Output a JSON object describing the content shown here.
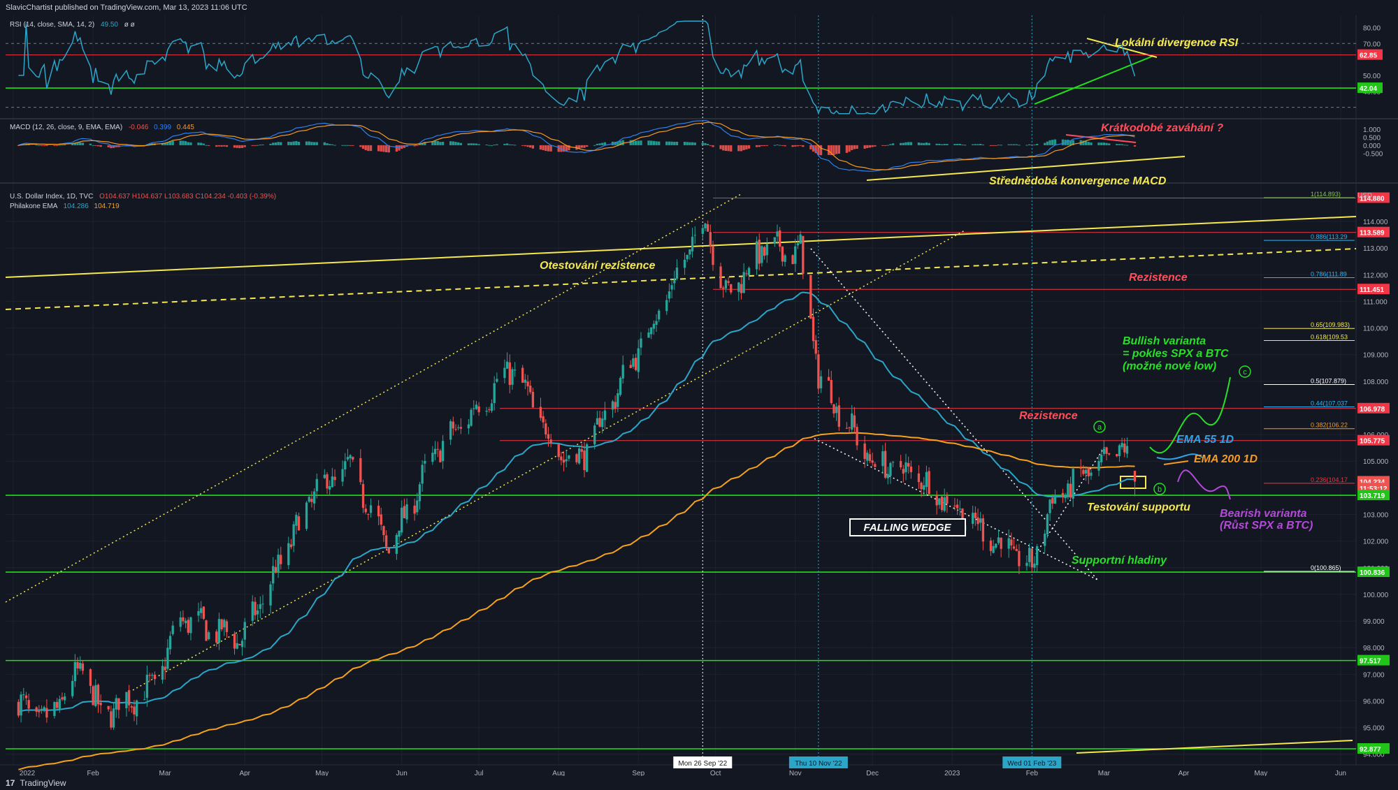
{
  "header": {
    "published_by": "SlavicChartist published on TradingView.com, Mar 13, 2023 11:06 UTC"
  },
  "footer": {
    "brand": "TradingView",
    "logo_glyph": "17"
  },
  "colors": {
    "background": "#131722",
    "up": "#26a69a",
    "down": "#ef5350",
    "ema55": "#2ba6c9",
    "ema200": "#f7a21b",
    "support": "#22e01a",
    "resistance": "#f23645",
    "annotation_yellow": "#f5e94f",
    "annotation_red": "#ff4d5a",
    "annotation_green": "#27e027",
    "annotation_purple": "#b44ad8",
    "annotation_blue": "#2fa3e6",
    "annotation_orange": "#f59a23"
  },
  "panels": {
    "rsi": {
      "legend_name": "RSI (14, close, SMA, 14, 2)",
      "legend_value": "49.50",
      "legend_extra": "ø ø",
      "ticks": [
        "80.00",
        "70.00",
        "50.00",
        "40.00"
      ],
      "badge_upper": "62.85",
      "badge_lower": "42.04"
    },
    "macd": {
      "legend_name": "MACD (12, 26, close, 9, EMA, EMA)",
      "legend_values": [
        "-0.046",
        "0.399",
        "0.445"
      ],
      "ticks": [
        "1.000",
        "0.500",
        "0.000",
        "-0.500"
      ]
    },
    "price": {
      "legend_symbol": "U.S. Dollar Index, 1D, TVC",
      "legend_ohlc": "O104.637 H104.637 L103.683 C104.234 -0.403 (-0.39%)",
      "legend_ema": "Philakone EMA",
      "legend_ema_values": [
        "104.286",
        "104.719"
      ],
      "currency": "USD",
      "ticks": [
        "114.000",
        "113.000",
        "112.000",
        "111.000",
        "110.000",
        "109.000",
        "108.000",
        "107.000",
        "106.000",
        "105.000",
        "103.000",
        "102.000",
        "101.000",
        "100.000",
        "99.000",
        "98.000",
        "97.000",
        "96.000",
        "95.000",
        "94.000"
      ],
      "badges": [
        {
          "label": "114.880",
          "price": 114.88,
          "color": "#f23645"
        },
        {
          "label": "113.589",
          "price": 113.589,
          "color": "#f23645"
        },
        {
          "label": "111.451",
          "price": 111.451,
          "color": "#f23645"
        },
        {
          "label": "106.978",
          "price": 106.978,
          "color": "#f23645"
        },
        {
          "label": "105.775",
          "price": 105.775,
          "color": "#f23645"
        },
        {
          "label": "104.234",
          "price": 104.234,
          "color": "#ef5350"
        },
        {
          "label": "11:53:12",
          "price": 103.98,
          "color": "#ef5350"
        },
        {
          "label": "103.719",
          "price": 103.719,
          "color": "#22c41a"
        },
        {
          "label": "100.836",
          "price": 100.836,
          "color": "#22c41a"
        },
        {
          "label": "97.517",
          "price": 97.517,
          "color": "#22c41a"
        },
        {
          "label": "92.877",
          "price": 92.877,
          "color": "#22c41a"
        }
      ],
      "fib_levels": [
        {
          "label": "1(114.893)",
          "price": 114.893,
          "color": "#8bc34a"
        },
        {
          "label": "0.886(113.29",
          "price": 113.29,
          "color": "#29b6f6"
        },
        {
          "label": "0.786(111.89",
          "price": 111.89,
          "color": "#29b6f6"
        },
        {
          "label": "0.65(109.983)",
          "price": 109.983,
          "color": "#f5e94f"
        },
        {
          "label": "0.618(109.53",
          "price": 109.53,
          "color": "#f5e94f"
        },
        {
          "label": "0.5(107.879)",
          "price": 107.879,
          "color": "#ffffff"
        },
        {
          "label": "0.44(107.037",
          "price": 107.037,
          "color": "#29b6f6"
        },
        {
          "label": "0.382(106.22",
          "price": 106.22,
          "color": "#f59a23"
        },
        {
          "label": "0.236(104.17",
          "price": 104.17,
          "color": "#f23645"
        },
        {
          "label": "0(100.865)",
          "price": 100.865,
          "color": "#ffffff"
        }
      ]
    }
  },
  "time_axis": {
    "labels": [
      "2022",
      "Feb",
      "Mar",
      "Apr",
      "May",
      "Jun",
      "Jul",
      "Aug",
      "Sep",
      "Oct",
      "Nov",
      "Dec",
      "2023",
      "Feb",
      "Mar",
      "Apr",
      "May",
      "Jun"
    ],
    "highlights": [
      "Mon 26 Sep '22",
      "Thu 10 Nov '22",
      "Wed 01 Feb '23"
    ]
  },
  "annotations": {
    "rsi_divergence": "Lokální divergence RSI",
    "macd_hesitation": "Krátkodobé zaváhání ?",
    "macd_convergence": "Střednědobá konvergence MACD",
    "resistance_test": "Otestování rezistence",
    "resistance_1": "Rezistence",
    "resistance_2": "Rezistence",
    "bullish_1": "Bullish varianta",
    "bullish_2": "= pokles SPX a BTC",
    "bullish_3": "(možné nové low)",
    "ema55": "EMA 55 1D",
    "ema200": "EMA 200 1D",
    "support_test": "Testování supportu",
    "bearish_1": "Bearish varianta",
    "bearish_2": "(Růst SPX a BTC)",
    "falling_wedge": "FALLING WEDGE",
    "support_levels": "Supportní hladiny",
    "point_a": "a",
    "point_b": "b",
    "point_c": "c"
  },
  "chart_data": {
    "type": "candlestick",
    "symbol": "U.S. Dollar Index",
    "timeframe": "1D",
    "ylim": [
      93.6,
      115.6
    ],
    "anchors": [
      {
        "date": "2022-01-03",
        "close": 95.9
      },
      {
        "date": "2022-01-14",
        "close": 95.2
      },
      {
        "date": "2022-01-28",
        "close": 97.3
      },
      {
        "date": "2022-02-04",
        "close": 95.4
      },
      {
        "date": "2022-02-25",
        "close": 96.6
      },
      {
        "date": "2022-03-07",
        "close": 99.1
      },
      {
        "date": "2022-03-31",
        "close": 98.3
      },
      {
        "date": "2022-04-28",
        "close": 103.8
      },
      {
        "date": "2022-05-12",
        "close": 104.8
      },
      {
        "date": "2022-05-27",
        "close": 101.7
      },
      {
        "date": "2022-06-14",
        "close": 105.3
      },
      {
        "date": "2022-07-14",
        "close": 108.5
      },
      {
        "date": "2022-08-01",
        "close": 105.3
      },
      {
        "date": "2022-08-10",
        "close": 105.1
      },
      {
        "date": "2022-09-07",
        "close": 110.3
      },
      {
        "date": "2022-09-27",
        "close": 114.1
      },
      {
        "date": "2022-10-05",
        "close": 111.2
      },
      {
        "date": "2022-10-20",
        "close": 113.0
      },
      {
        "date": "2022-11-03",
        "close": 112.9
      },
      {
        "date": "2022-11-10",
        "close": 108.2
      },
      {
        "date": "2022-12-01",
        "close": 104.9
      },
      {
        "date": "2022-12-16",
        "close": 104.6
      },
      {
        "date": "2022-12-30",
        "close": 103.5
      },
      {
        "date": "2023-01-18",
        "close": 102.0
      },
      {
        "date": "2023-02-01",
        "close": 101.0
      },
      {
        "date": "2023-02-08",
        "close": 103.4
      },
      {
        "date": "2023-02-23",
        "close": 104.6
      },
      {
        "date": "2023-03-02",
        "close": 104.9
      },
      {
        "date": "2023-03-08",
        "close": 105.6
      },
      {
        "date": "2023-03-13",
        "close": 104.2
      }
    ],
    "last": {
      "open": 104.637,
      "high": 104.637,
      "low": 103.683,
      "close": 104.234
    },
    "ema55_last": 104.286,
    "ema200_last": 104.719,
    "rsi_last": 49.5,
    "macd_last": [
      -0.046,
      0.399,
      0.445
    ]
  }
}
